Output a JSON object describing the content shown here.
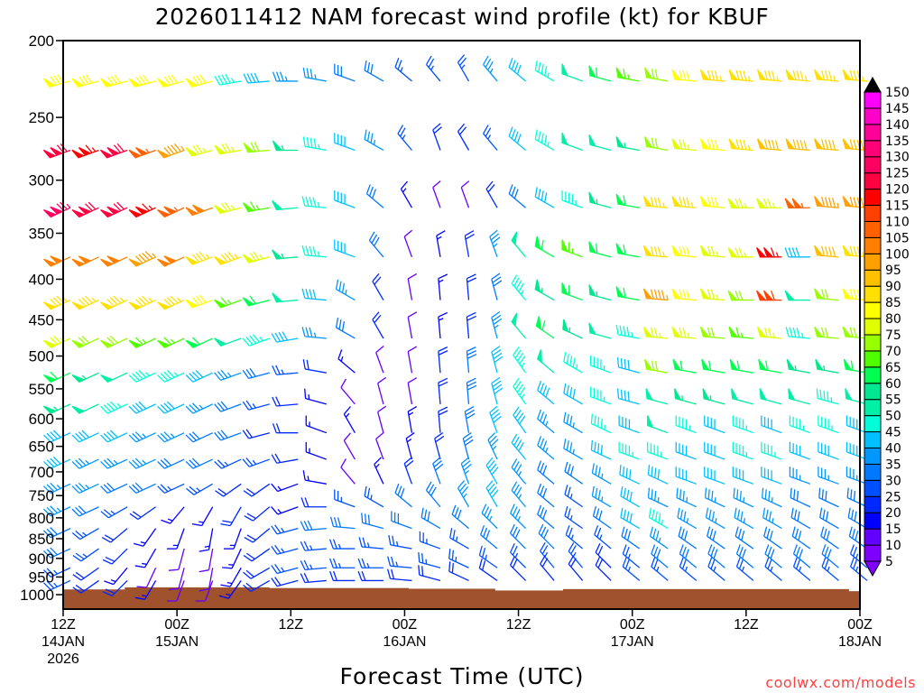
{
  "chart_data": {
    "type": "wind-barb-profile",
    "title": "2026011412 NAM forecast wind profile (kt) for KBUF",
    "xlabel": "Forecast Time (UTC)",
    "ylabel": "",
    "credit": "coolwx.com/models",
    "y_ticks": [
      200,
      250,
      300,
      350,
      400,
      450,
      500,
      550,
      600,
      650,
      700,
      750,
      800,
      850,
      900,
      950,
      1000
    ],
    "ylim": [
      1000,
      200
    ],
    "y_scale": "log",
    "x_range_hours": [
      0,
      84
    ],
    "x_ticks": [
      {
        "hour": 0,
        "lines": [
          "12Z",
          "14JAN",
          "2026"
        ]
      },
      {
        "hour": 12,
        "lines": [
          "00Z",
          "15JAN"
        ]
      },
      {
        "hour": 24,
        "lines": [
          "12Z"
        ]
      },
      {
        "hour": 36,
        "lines": [
          "00Z",
          "16JAN"
        ]
      },
      {
        "hour": 48,
        "lines": [
          "12Z"
        ]
      },
      {
        "hour": 60,
        "lines": [
          "00Z",
          "17JAN"
        ]
      },
      {
        "hour": 72,
        "lines": [
          "12Z"
        ]
      },
      {
        "hour": 84,
        "lines": [
          "00Z",
          "18JAN"
        ]
      }
    ],
    "surface_pressure": [
      {
        "from_hour": 0,
        "to_hour": 6.5,
        "p": 985
      },
      {
        "from_hour": 6.5,
        "to_hour": 21.7,
        "p": 979
      },
      {
        "from_hour": 21.7,
        "to_hour": 36.4,
        "p": 981
      },
      {
        "from_hour": 36.4,
        "to_hour": 45.5,
        "p": 983
      },
      {
        "from_hour": 45.5,
        "to_hour": 52.7,
        "p": 988
      },
      {
        "from_hour": 52.7,
        "to_hour": 82.8,
        "p": 984
      },
      {
        "from_hour": 82.8,
        "to_hour": 84,
        "p": 990
      }
    ],
    "surface_color": "#a0522d",
    "barb_hours_step": 3,
    "levels": [
      225,
      275,
      325,
      375,
      425,
      475,
      525,
      575,
      625,
      675,
      725,
      775,
      825,
      875,
      925,
      960
    ],
    "speed_kt": [
      [
        80,
        80,
        80,
        80,
        80,
        80,
        45,
        40,
        35,
        35,
        30,
        30,
        25,
        25,
        25,
        35,
        40,
        45,
        50,
        60,
        65,
        70,
        80,
        85,
        85,
        85,
        85,
        85,
        85
      ],
      [
        120,
        115,
        120,
        105,
        95,
        75,
        75,
        70,
        55,
        45,
        40,
        35,
        25,
        20,
        20,
        25,
        40,
        45,
        50,
        50,
        55,
        70,
        75,
        80,
        85,
        90,
        90,
        90,
        90
      ],
      [
        125,
        120,
        120,
        115,
        105,
        100,
        75,
        65,
        50,
        45,
        40,
        30,
        15,
        10,
        10,
        20,
        30,
        40,
        45,
        55,
        60,
        85,
        85,
        80,
        75,
        75,
        105,
        95,
        95
      ],
      [
        100,
        100,
        100,
        95,
        100,
        85,
        85,
        75,
        55,
        45,
        40,
        30,
        10,
        15,
        20,
        35,
        50,
        60,
        65,
        60,
        60,
        85,
        80,
        75,
        75,
        115,
        40,
        90,
        85
      ],
      [
        85,
        85,
        85,
        85,
        85,
        80,
        65,
        60,
        50,
        40,
        35,
        20,
        10,
        15,
        20,
        30,
        45,
        55,
        60,
        55,
        60,
        95,
        80,
        75,
        70,
        110,
        50,
        70,
        80
      ],
      [
        75,
        70,
        70,
        65,
        65,
        60,
        50,
        45,
        40,
        35,
        30,
        20,
        10,
        15,
        20,
        35,
        50,
        60,
        55,
        50,
        45,
        75,
        75,
        70,
        65,
        75,
        45,
        70,
        70
      ],
      [
        60,
        55,
        50,
        45,
        45,
        40,
        35,
        30,
        25,
        20,
        15,
        10,
        10,
        20,
        30,
        40,
        45,
        50,
        45,
        45,
        40,
        70,
        60,
        60,
        60,
        60,
        55,
        55,
        60
      ],
      [
        55,
        50,
        45,
        40,
        40,
        35,
        30,
        25,
        20,
        15,
        10,
        10,
        10,
        20,
        30,
        40,
        45,
        40,
        40,
        45,
        40,
        50,
        55,
        55,
        50,
        50,
        50,
        45,
        50
      ],
      [
        40,
        40,
        40,
        35,
        35,
        30,
        30,
        20,
        20,
        15,
        15,
        10,
        15,
        20,
        30,
        40,
        40,
        35,
        35,
        45,
        40,
        50,
        45,
        40,
        45,
        40,
        45,
        45,
        40
      ],
      [
        40,
        35,
        35,
        35,
        30,
        30,
        25,
        25,
        20,
        15,
        10,
        10,
        15,
        20,
        30,
        35,
        40,
        35,
        35,
        40,
        45,
        45,
        40,
        40,
        45,
        45,
        40,
        40,
        40
      ],
      [
        35,
        35,
        30,
        30,
        25,
        25,
        20,
        20,
        15,
        15,
        10,
        15,
        20,
        30,
        35,
        40,
        35,
        30,
        30,
        35,
        40,
        40,
        40,
        40,
        40,
        40,
        35,
        35,
        35
      ],
      [
        35,
        30,
        25,
        20,
        15,
        15,
        20,
        20,
        15,
        20,
        25,
        25,
        30,
        30,
        35,
        40,
        35,
        30,
        25,
        35,
        40,
        35,
        35,
        35,
        35,
        35,
        30,
        30,
        30
      ],
      [
        30,
        25,
        20,
        15,
        15,
        15,
        15,
        20,
        25,
        30,
        30,
        30,
        30,
        30,
        30,
        35,
        35,
        30,
        25,
        30,
        40,
        45,
        35,
        35,
        35,
        35,
        30,
        30,
        30
      ],
      [
        30,
        25,
        20,
        15,
        10,
        10,
        15,
        20,
        25,
        25,
        25,
        25,
        25,
        25,
        25,
        30,
        30,
        30,
        25,
        25,
        30,
        35,
        30,
        30,
        30,
        30,
        30,
        30,
        30
      ],
      [
        25,
        20,
        15,
        10,
        10,
        10,
        15,
        20,
        25,
        25,
        25,
        25,
        25,
        25,
        25,
        25,
        25,
        25,
        25,
        20,
        25,
        30,
        30,
        30,
        30,
        30,
        30,
        30,
        25
      ],
      [
        25,
        20,
        20,
        15,
        10,
        10,
        15,
        20,
        20,
        20,
        20,
        20,
        20,
        20,
        20,
        20,
        20,
        20,
        20,
        20,
        25,
        25,
        25,
        25,
        25,
        25,
        25,
        25,
        25
      ]
    ],
    "direction_deg": [
      [
        255,
        255,
        255,
        255,
        255,
        255,
        260,
        265,
        270,
        280,
        290,
        300,
        310,
        320,
        330,
        320,
        310,
        300,
        290,
        285,
        280,
        280,
        275,
        275,
        275,
        275,
        275,
        275,
        275
      ],
      [
        250,
        250,
        250,
        250,
        250,
        255,
        260,
        265,
        270,
        280,
        290,
        300,
        320,
        340,
        330,
        320,
        310,
        300,
        290,
        285,
        280,
        280,
        275,
        275,
        275,
        275,
        275,
        275,
        275
      ],
      [
        245,
        245,
        245,
        245,
        245,
        250,
        255,
        260,
        265,
        275,
        290,
        310,
        330,
        340,
        340,
        330,
        310,
        300,
        290,
        285,
        280,
        275,
        275,
        275,
        270,
        270,
        270,
        275,
        275
      ],
      [
        245,
        245,
        245,
        245,
        245,
        250,
        250,
        255,
        265,
        275,
        290,
        320,
        340,
        350,
        350,
        340,
        320,
        300,
        290,
        285,
        280,
        275,
        275,
        275,
        270,
        270,
        270,
        275,
        275
      ],
      [
        245,
        245,
        245,
        245,
        245,
        250,
        250,
        255,
        265,
        275,
        300,
        330,
        350,
        355,
        355,
        345,
        320,
        300,
        290,
        285,
        280,
        275,
        275,
        275,
        270,
        270,
        270,
        275,
        275
      ],
      [
        245,
        245,
        245,
        245,
        245,
        245,
        250,
        250,
        260,
        275,
        300,
        330,
        350,
        355,
        355,
        345,
        320,
        305,
        295,
        285,
        280,
        275,
        275,
        275,
        275,
        275,
        275,
        275,
        275
      ],
      [
        245,
        245,
        245,
        245,
        245,
        245,
        250,
        255,
        265,
        280,
        310,
        340,
        350,
        355,
        355,
        345,
        325,
        310,
        300,
        290,
        285,
        280,
        280,
        280,
        280,
        280,
        280,
        280,
        280
      ],
      [
        245,
        245,
        245,
        245,
        245,
        245,
        250,
        255,
        265,
        285,
        320,
        345,
        350,
        355,
        355,
        345,
        325,
        310,
        300,
        290,
        285,
        285,
        285,
        285,
        285,
        285,
        285,
        285,
        285
      ],
      [
        245,
        245,
        245,
        245,
        245,
        245,
        250,
        255,
        270,
        290,
        330,
        345,
        350,
        355,
        350,
        340,
        325,
        310,
        300,
        295,
        290,
        290,
        290,
        290,
        290,
        290,
        290,
        290,
        290
      ],
      [
        245,
        245,
        245,
        245,
        245,
        245,
        245,
        250,
        260,
        290,
        330,
        340,
        345,
        345,
        345,
        335,
        320,
        310,
        300,
        295,
        290,
        290,
        290,
        290,
        290,
        290,
        290,
        290,
        290
      ],
      [
        245,
        245,
        245,
        245,
        245,
        240,
        235,
        235,
        250,
        280,
        320,
        335,
        340,
        340,
        340,
        330,
        320,
        310,
        305,
        300,
        295,
        295,
        290,
        290,
        290,
        290,
        290,
        290,
        290
      ],
      [
        245,
        245,
        240,
        235,
        220,
        210,
        210,
        230,
        250,
        270,
        290,
        300,
        310,
        320,
        330,
        330,
        320,
        310,
        305,
        300,
        300,
        295,
        295,
        295,
        295,
        295,
        295,
        295,
        295
      ],
      [
        245,
        240,
        230,
        215,
        200,
        190,
        200,
        230,
        255,
        265,
        275,
        285,
        290,
        300,
        310,
        315,
        315,
        310,
        305,
        305,
        300,
        300,
        300,
        300,
        300,
        300,
        300,
        300,
        300
      ],
      [
        245,
        235,
        225,
        210,
        195,
        190,
        205,
        235,
        255,
        265,
        270,
        275,
        280,
        290,
        300,
        310,
        315,
        315,
        310,
        310,
        305,
        305,
        305,
        305,
        305,
        305,
        305,
        305,
        305
      ],
      [
        245,
        235,
        220,
        205,
        195,
        190,
        210,
        240,
        255,
        265,
        270,
        270,
        275,
        285,
        295,
        305,
        315,
        320,
        320,
        315,
        310,
        310,
        310,
        310,
        310,
        310,
        310,
        310,
        310
      ],
      [
        245,
        235,
        225,
        210,
        200,
        200,
        215,
        240,
        255,
        265,
        270,
        270,
        275,
        285,
        295,
        305,
        315,
        320,
        320,
        315,
        310,
        310,
        310,
        310,
        310,
        310,
        310,
        310,
        310
      ]
    ],
    "colorbar": {
      "labels": [
        5,
        10,
        15,
        20,
        25,
        30,
        35,
        40,
        45,
        50,
        55,
        60,
        65,
        70,
        75,
        80,
        85,
        90,
        95,
        100,
        105,
        110,
        115,
        120,
        125,
        130,
        135,
        140,
        145,
        150
      ],
      "colors": [
        "#8000ff",
        "#6400ff",
        "#0000ff",
        "#0028ff",
        "#0050ff",
        "#0078ff",
        "#0098ff",
        "#00c0ff",
        "#00ffd8",
        "#00f0a8",
        "#00e890",
        "#00ff50",
        "#50ff00",
        "#98ff00",
        "#e0ff00",
        "#ffff00",
        "#ffe000",
        "#ffc000",
        "#ffa000",
        "#ff8000",
        "#ff6000",
        "#ff4000",
        "#ff0000",
        "#ff0040",
        "#ff0060",
        "#ff0078",
        "#ff0098",
        "#ff00c8",
        "#ff00ff"
      ],
      "below_color": "#8000ff",
      "above_color": "#000000"
    }
  }
}
